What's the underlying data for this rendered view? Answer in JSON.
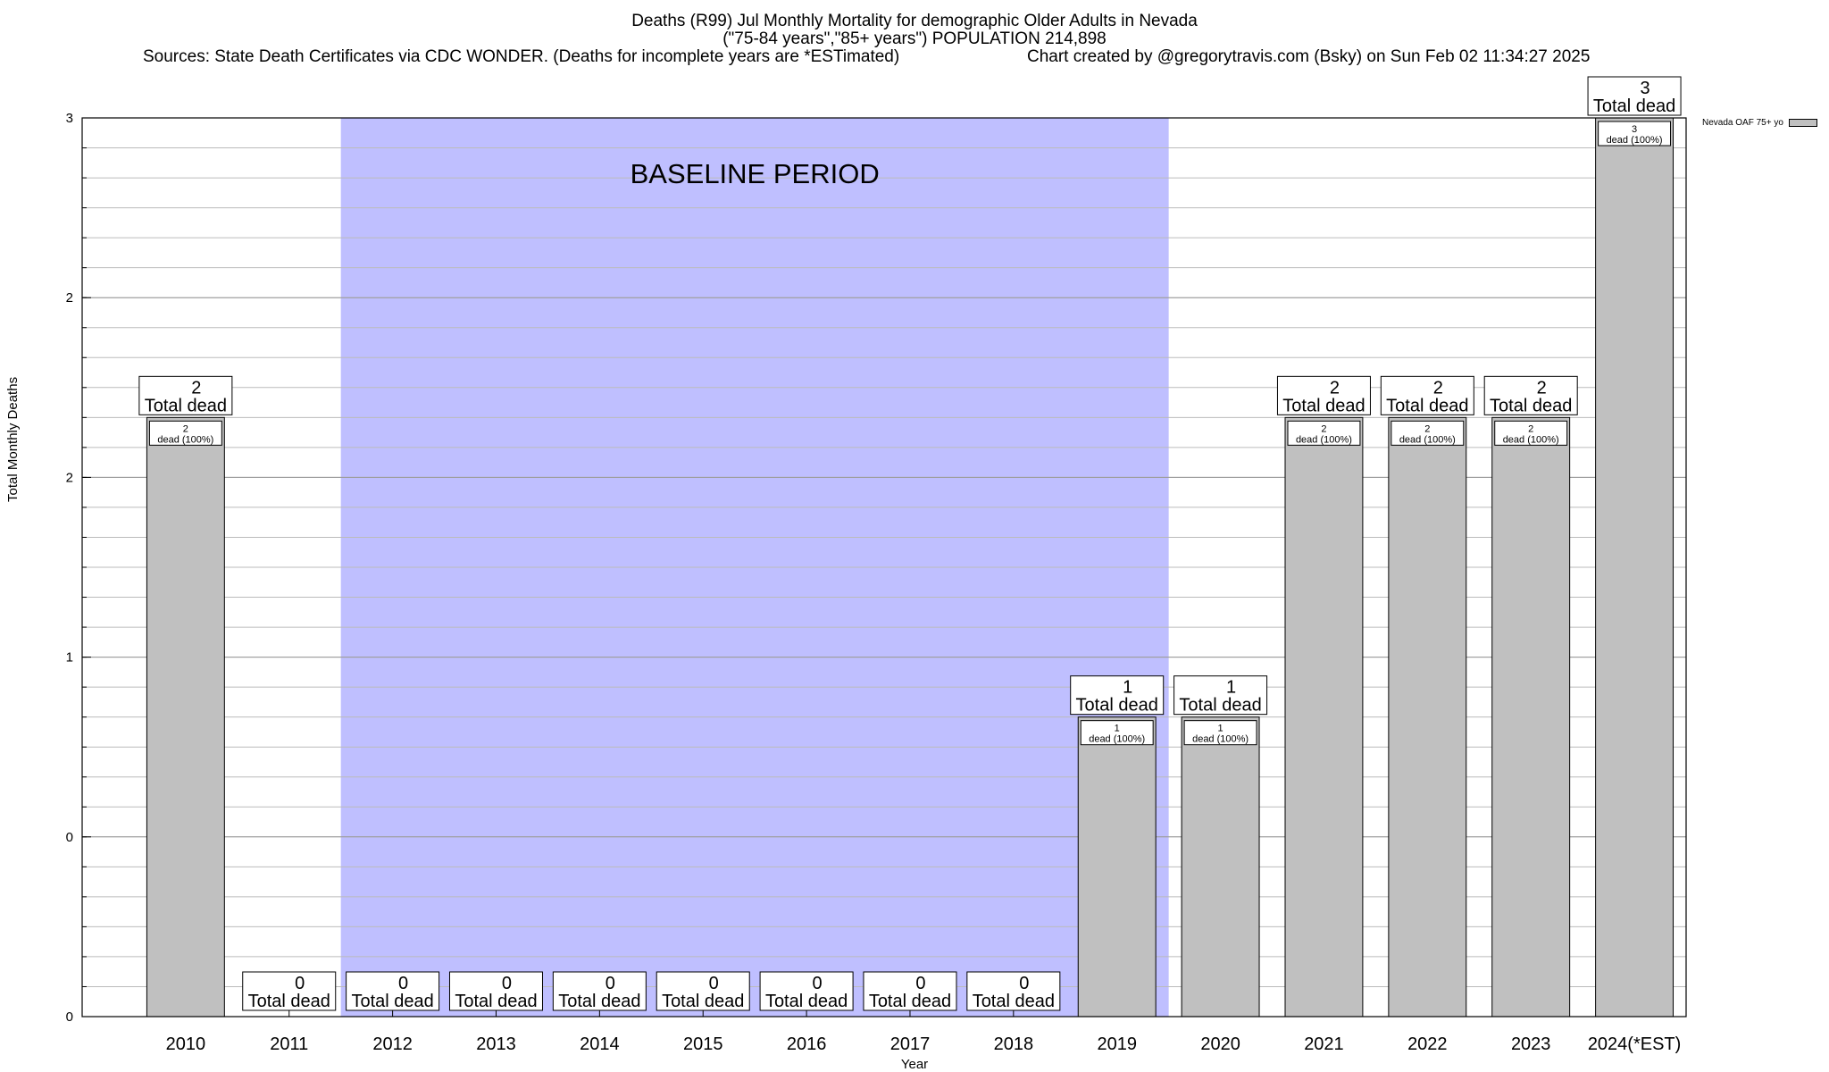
{
  "header": {
    "title_line1": "Deaths (R99) Jul Monthly Mortality for demographic Older Adults in Nevada",
    "title_line2": "(\"75-84 years\",\"85+ years\") POPULATION 214,898",
    "sources": "Sources: State Death Certificates via CDC WONDER. (Deaths for incomplete years are *ESTimated)",
    "credit": "Chart created by @gregorytravis.com (Bsky) on Sun Feb 02 11:34:27 2025"
  },
  "chart_data": {
    "type": "bar",
    "categories": [
      "2010",
      "2011",
      "2012",
      "2013",
      "2014",
      "2015",
      "2016",
      "2017",
      "2018",
      "2019",
      "2020",
      "2021",
      "2022",
      "2023",
      "2024(*EST)"
    ],
    "series": [
      {
        "name": "Nevada OAF 75+ yo",
        "values": [
          2,
          0,
          0,
          0,
          0,
          0,
          0,
          0,
          0,
          1,
          1,
          2,
          2,
          2,
          3
        ]
      }
    ],
    "xlabel": "Year",
    "ylabel": "Total Monthly Deaths",
    "ylim": [
      0,
      3
    ],
    "y_tick_labels": [
      "0",
      "0",
      "1",
      "2",
      "2",
      "3"
    ],
    "total_label_suffix": "Total dead",
    "inner_label_suffix": "dead (100%)",
    "baseline_label": "BASELINE PERIOD",
    "baseline_range": [
      "2012",
      "2019"
    ],
    "grid": true,
    "legend_position": "top-right",
    "colors": {
      "bar": "#c0c0c0",
      "baseline": "#bfbfff"
    }
  }
}
